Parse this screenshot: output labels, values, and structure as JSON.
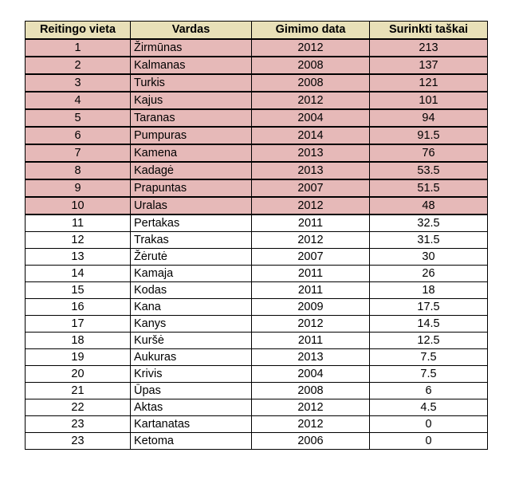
{
  "table": {
    "headers": [
      "Reitingo vieta",
      "Vardas",
      "Gimimo data",
      "Surinkti taškai"
    ],
    "highlight_color": "#e6b9b8",
    "header_color": "#e8e0b8",
    "rows": [
      {
        "place": "1",
        "name": "Žirmūnas",
        "year": "2012",
        "points": "213",
        "top": true
      },
      {
        "place": "2",
        "name": "Kalmanas",
        "year": "2008",
        "points": "137",
        "top": true
      },
      {
        "place": "3",
        "name": "Turkis",
        "year": "2008",
        "points": "121",
        "top": true
      },
      {
        "place": "4",
        "name": "Kajus",
        "year": "2012",
        "points": "101",
        "top": true
      },
      {
        "place": "5",
        "name": "Taranas",
        "year": "2004",
        "points": "94",
        "top": true
      },
      {
        "place": "6",
        "name": "Pumpuras",
        "year": "2014",
        "points": "91.5",
        "top": true
      },
      {
        "place": "7",
        "name": "Kamena",
        "year": "2013",
        "points": "76",
        "top": true
      },
      {
        "place": "8",
        "name": "Kadagė",
        "year": "2013",
        "points": "53.5",
        "top": true
      },
      {
        "place": "9",
        "name": "Prapuntas",
        "year": "2007",
        "points": "51.5",
        "top": true
      },
      {
        "place": "10",
        "name": "Uralas",
        "year": "2012",
        "points": "48",
        "top": true
      },
      {
        "place": "11",
        "name": "Pertakas",
        "year": "2011",
        "points": "32.5",
        "top": false
      },
      {
        "place": "12",
        "name": "Trakas",
        "year": "2012",
        "points": "31.5",
        "top": false
      },
      {
        "place": "13",
        "name": "Žėrutė",
        "year": "2007",
        "points": "30",
        "top": false
      },
      {
        "place": "14",
        "name": "Kamaja",
        "year": "2011",
        "points": "26",
        "top": false
      },
      {
        "place": "15",
        "name": "Kodas",
        "year": "2011",
        "points": "18",
        "top": false
      },
      {
        "place": "16",
        "name": "Kana",
        "year": "2009",
        "points": "17.5",
        "top": false
      },
      {
        "place": "17",
        "name": "Kanys",
        "year": "2012",
        "points": "14.5",
        "top": false
      },
      {
        "place": "18",
        "name": "Kuršė",
        "year": "2011",
        "points": "12.5",
        "top": false
      },
      {
        "place": "19",
        "name": "Aukuras",
        "year": "2013",
        "points": "7.5",
        "top": false
      },
      {
        "place": "20",
        "name": "Krivis",
        "year": "2004",
        "points": "7.5",
        "top": false
      },
      {
        "place": "21",
        "name": "Ūpas",
        "year": "2008",
        "points": "6",
        "top": false
      },
      {
        "place": "22",
        "name": "Aktas",
        "year": "2012",
        "points": "4.5",
        "top": false
      },
      {
        "place": "23",
        "name": "Kartanatas",
        "year": "2012",
        "points": "0",
        "top": false
      },
      {
        "place": "23",
        "name": "Ketoma",
        "year": "2006",
        "points": "0",
        "top": false
      }
    ]
  }
}
